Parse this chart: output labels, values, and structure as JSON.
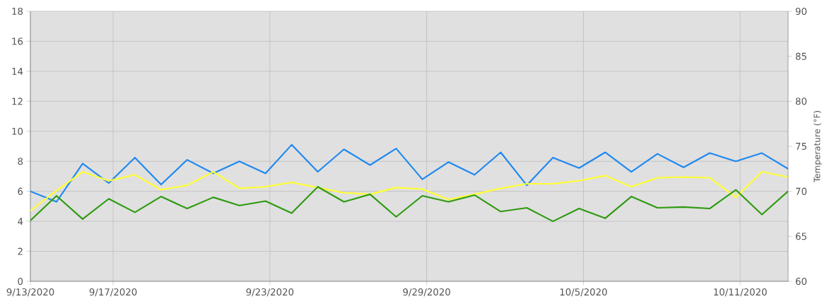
{
  "chart_data": {
    "type": "line",
    "grid": true,
    "x": [
      "2020-09-13T20:00",
      "2020-09-14T20:00",
      "2020-09-15T20:00",
      "2020-09-16T20:00",
      "2020-09-17T20:00",
      "2020-09-18T20:00",
      "2020-09-19T20:00",
      "2020-09-20T20:00",
      "2020-09-21T20:00",
      "2020-09-22T20:00",
      "2020-09-23T20:00",
      "2020-09-24T20:00",
      "2020-09-25T20:00",
      "2020-09-26T20:00",
      "2020-09-27T20:00",
      "2020-09-28T20:00",
      "2020-09-29T20:00",
      "2020-09-30T20:00",
      "2020-10-01T20:00",
      "2020-10-02T20:00",
      "2020-10-03T20:00",
      "2020-10-04T20:00",
      "2020-10-05T20:00",
      "2020-10-06T20:00",
      "2020-10-07T20:00",
      "2020-10-08T20:00",
      "2020-10-09T20:00",
      "2020-10-10T20:00",
      "2020-10-11T20:00",
      "2020-10-12T20:00"
    ],
    "xlim": [
      "2020-09-13T20:00",
      "2020-10-12T20:00"
    ],
    "xticks": [
      {
        "value": "2020-09-13T20:00",
        "label": "9/13/2020"
      },
      {
        "value": "2020-09-17",
        "label": "9/17/2020"
      },
      {
        "value": "2020-09-23",
        "label": "9/23/2020"
      },
      {
        "value": "2020-09-29",
        "label": "9/29/2020"
      },
      {
        "value": "2020-10-05",
        "label": "10/5/2020"
      },
      {
        "value": "2020-10-11",
        "label": "10/11/2020"
      }
    ],
    "ylim": [
      0,
      18
    ],
    "yticks": [
      0,
      2,
      4,
      6,
      8,
      10,
      12,
      14,
      16,
      18
    ],
    "y2lim": [
      60,
      90
    ],
    "y2ticks": [
      60,
      65,
      70,
      75,
      80,
      85,
      90
    ],
    "y2label": "Temperature  (°F)",
    "series": [
      {
        "color": "#1e88f0",
        "values": [
          6.0,
          5.3,
          7.85,
          6.55,
          8.25,
          6.45,
          8.1,
          7.2,
          8.0,
          7.2,
          9.1,
          7.3,
          8.8,
          7.75,
          8.85,
          6.8,
          7.95,
          7.1,
          8.6,
          6.4,
          8.25,
          7.55,
          8.6,
          7.3,
          8.5,
          7.6,
          8.55,
          8.0,
          8.55,
          7.5
        ]
      },
      {
        "color": "#ffff33",
        "values": [
          4.7,
          6.05,
          7.3,
          6.7,
          7.1,
          6.1,
          6.4,
          7.3,
          6.2,
          6.3,
          6.6,
          6.25,
          5.9,
          5.8,
          6.25,
          6.15,
          5.45,
          5.8,
          6.2,
          6.5,
          6.5,
          6.7,
          7.05,
          6.3,
          6.9,
          6.95,
          6.9,
          5.6,
          7.3,
          6.95
        ]
      },
      {
        "color": "#2e9a10",
        "values": [
          4.05,
          5.7,
          4.15,
          5.5,
          4.6,
          5.65,
          4.85,
          5.6,
          5.05,
          5.35,
          4.55,
          6.3,
          5.3,
          5.8,
          4.3,
          5.7,
          5.3,
          5.75,
          4.65,
          4.9,
          4.0,
          4.85,
          4.2,
          5.65,
          4.9,
          4.95,
          4.85,
          6.1,
          4.45,
          6.0
        ]
      }
    ]
  }
}
